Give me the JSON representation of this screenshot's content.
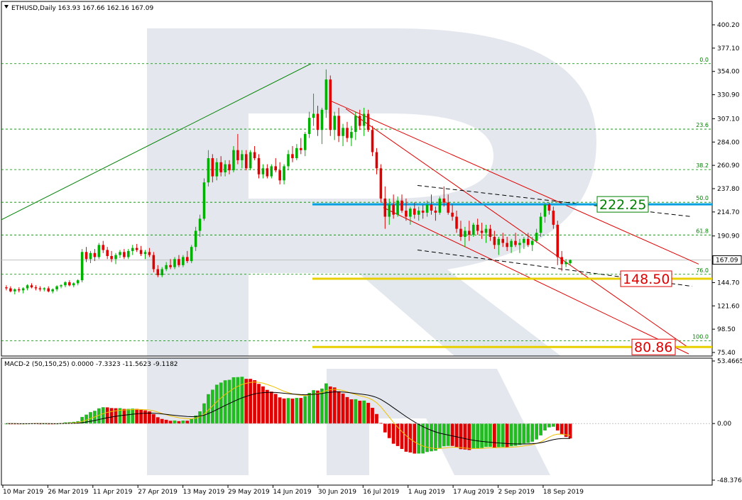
{
  "chart_data": [
    {
      "type": "candlestick",
      "header": "ETHUSD,Daily  163.93 167.66 162.16 167.09",
      "yticks": [
        "400.20",
        "377.10",
        "354.00",
        "330.90",
        "307.10",
        "284.00",
        "260.90",
        "237.80",
        "214.70",
        "190.90",
        "167.80",
        "144.70",
        "121.60",
        "98.50",
        "75.40"
      ],
      "ylim": [
        75.4,
        400.2
      ],
      "xticks": [
        "10 Mar 2019",
        "26 Mar 2019",
        "11 Apr 2019",
        "27 Apr 2019",
        "13 May 2019",
        "29 May 2019",
        "14 Jun 2019",
        "30 Jun 2019",
        "16 Jul 2019",
        "1 Aug 2019",
        "17 Aug 2019",
        "2 Sep 2019",
        "18 Sep 2019"
      ],
      "last_price": "167.09",
      "fibonacci_levels": [
        {
          "label": "0.0",
          "price": 361.7
        },
        {
          "label": "23.6",
          "price": 296.8
        },
        {
          "label": "38.2",
          "price": 256.7
        },
        {
          "label": "50.0",
          "price": 224.3
        },
        {
          "label": "61.8",
          "price": 191.9
        },
        {
          "label": "76.0",
          "price": 152.9
        },
        {
          "label": "100.0",
          "price": 86.9
        }
      ],
      "price_labels": [
        {
          "text": "222.25",
          "price": 222.25,
          "color": "#008000",
          "line_color": "#00a0e0"
        },
        {
          "text": "148.50",
          "price": 148.5,
          "color": "#e00000",
          "line_color": "#e8d000"
        },
        {
          "text": "80.86",
          "price": 80.86,
          "color": "#e00000",
          "line_color": "#e8d000"
        }
      ],
      "ohlc": [
        [
          140,
          142,
          137,
          139
        ],
        [
          139,
          141,
          135,
          136
        ],
        [
          136,
          139,
          133,
          138
        ],
        [
          138,
          140,
          135,
          137
        ],
        [
          137,
          140,
          134,
          139
        ],
        [
          139,
          143,
          137,
          142
        ],
        [
          142,
          144,
          139,
          140
        ],
        [
          140,
          142,
          137,
          139
        ],
        [
          139,
          141,
          136,
          138
        ],
        [
          138,
          140,
          136,
          139
        ],
        [
          139,
          141,
          135,
          136
        ],
        [
          136,
          139,
          134,
          138
        ],
        [
          138,
          142,
          136,
          141
        ],
        [
          141,
          143,
          139,
          142
        ],
        [
          142,
          146,
          140,
          145
        ],
        [
          145,
          147,
          141,
          142
        ],
        [
          142,
          145,
          140,
          144
        ],
        [
          144,
          148,
          142,
          147
        ],
        [
          147,
          178,
          145,
          175
        ],
        [
          175,
          180,
          165,
          168
        ],
        [
          168,
          176,
          164,
          174
        ],
        [
          174,
          178,
          166,
          170
        ],
        [
          170,
          184,
          168,
          182
        ],
        [
          182,
          186,
          174,
          177
        ],
        [
          177,
          180,
          168,
          171
        ],
        [
          171,
          176,
          165,
          168
        ],
        [
          168,
          174,
          163,
          172
        ],
        [
          172,
          177,
          169,
          175
        ],
        [
          175,
          178,
          168,
          170
        ],
        [
          170,
          178,
          168,
          176
        ],
        [
          176,
          182,
          172,
          179
        ],
        [
          179,
          183,
          175,
          177
        ],
        [
          177,
          181,
          171,
          173
        ],
        [
          173,
          177,
          168,
          175
        ],
        [
          175,
          179,
          170,
          172
        ],
        [
          172,
          175,
          155,
          158
        ],
        [
          158,
          162,
          150,
          152
        ],
        [
          152,
          160,
          150,
          158
        ],
        [
          158,
          165,
          156,
          162
        ],
        [
          162,
          168,
          158,
          160
        ],
        [
          160,
          170,
          158,
          168
        ],
        [
          168,
          172,
          160,
          162
        ],
        [
          162,
          172,
          160,
          170
        ],
        [
          170,
          176,
          164,
          166
        ],
        [
          166,
          182,
          164,
          180
        ],
        [
          180,
          200,
          176,
          196
        ],
        [
          196,
          212,
          190,
          208
        ],
        [
          208,
          248,
          206,
          244
        ],
        [
          244,
          276,
          240,
          268
        ],
        [
          268,
          272,
          244,
          250
        ],
        [
          250,
          268,
          246,
          264
        ],
        [
          264,
          270,
          250,
          254
        ],
        [
          254,
          266,
          250,
          262
        ],
        [
          262,
          266,
          252,
          256
        ],
        [
          256,
          280,
          254,
          276
        ],
        [
          276,
          292,
          262,
          266
        ],
        [
          266,
          276,
          258,
          272
        ],
        [
          272,
          276,
          256,
          258
        ],
        [
          258,
          276,
          256,
          274
        ],
        [
          274,
          280,
          266,
          268
        ],
        [
          268,
          272,
          248,
          252
        ],
        [
          252,
          262,
          248,
          258
        ],
        [
          258,
          262,
          248,
          250
        ],
        [
          250,
          262,
          248,
          260
        ],
        [
          260,
          268,
          254,
          256
        ],
        [
          256,
          264,
          242,
          246
        ],
        [
          246,
          262,
          242,
          260
        ],
        [
          260,
          276,
          256,
          272
        ],
        [
          272,
          280,
          264,
          268
        ],
        [
          268,
          282,
          266,
          278
        ],
        [
          278,
          288,
          272,
          276
        ],
        [
          276,
          294,
          270,
          292
        ],
        [
          292,
          314,
          288,
          308
        ],
        [
          308,
          332,
          300,
          312
        ],
        [
          312,
          320,
          290,
          296
        ],
        [
          296,
          318,
          282,
          316
        ],
        [
          316,
          356,
          308,
          346
        ],
        [
          346,
          350,
          290,
          296
        ],
        [
          296,
          314,
          286,
          310
        ],
        [
          310,
          318,
          284,
          290
        ],
        [
          290,
          302,
          280,
          298
        ],
        [
          298,
          304,
          284,
          288
        ],
        [
          288,
          300,
          280,
          294
        ],
        [
          294,
          314,
          286,
          310
        ],
        [
          310,
          316,
          296,
          300
        ],
        [
          300,
          318,
          290,
          312
        ],
        [
          312,
          316,
          294,
          296
        ],
        [
          296,
          300,
          270,
          274
        ],
        [
          274,
          278,
          252,
          258
        ],
        [
          258,
          262,
          224,
          228
        ],
        [
          228,
          240,
          198,
          210
        ],
        [
          210,
          228,
          202,
          222
        ],
        [
          222,
          232,
          208,
          212
        ],
        [
          212,
          230,
          210,
          226
        ],
        [
          226,
          232,
          214,
          216
        ],
        [
          216,
          228,
          206,
          210
        ],
        [
          210,
          220,
          202,
          218
        ],
        [
          218,
          224,
          208,
          212
        ],
        [
          212,
          220,
          206,
          216
        ],
        [
          216,
          222,
          208,
          214
        ],
        [
          214,
          226,
          210,
          222
        ],
        [
          222,
          232,
          212,
          216
        ],
        [
          216,
          220,
          206,
          214
        ],
        [
          214,
          230,
          212,
          228
        ],
        [
          228,
          240,
          220,
          224
        ],
        [
          224,
          232,
          212,
          214
        ],
        [
          214,
          222,
          206,
          210
        ],
        [
          210,
          216,
          194,
          198
        ],
        [
          198,
          206,
          186,
          190
        ],
        [
          190,
          200,
          180,
          196
        ],
        [
          196,
          206,
          186,
          192
        ],
        [
          192,
          204,
          190,
          202
        ],
        [
          202,
          208,
          192,
          196
        ],
        [
          196,
          204,
          188,
          194
        ],
        [
          194,
          202,
          184,
          198
        ],
        [
          198,
          202,
          186,
          190
        ],
        [
          190,
          196,
          178,
          182
        ],
        [
          182,
          190,
          172,
          188
        ],
        [
          188,
          194,
          180,
          184
        ],
        [
          184,
          190,
          176,
          180
        ],
        [
          180,
          188,
          174,
          186
        ],
        [
          186,
          194,
          180,
          182
        ],
        [
          182,
          188,
          174,
          184
        ],
        [
          184,
          190,
          178,
          188
        ],
        [
          188,
          194,
          180,
          182
        ],
        [
          182,
          190,
          176,
          186
        ],
        [
          186,
          198,
          184,
          194
        ],
        [
          194,
          214,
          190,
          210
        ],
        [
          210,
          224,
          204,
          222
        ],
        [
          222,
          224,
          212,
          216
        ],
        [
          216,
          220,
          198,
          202
        ],
        [
          202,
          206,
          162,
          170
        ],
        [
          170,
          176,
          156,
          163
        ],
        [
          163,
          168,
          160,
          165
        ],
        [
          163.93,
          167.66,
          162.16,
          167.09
        ]
      ]
    },
    {
      "type": "macd",
      "header": "MACD-2 (50,150,25) 0.0000 -7.3323 -11.5623 -9.1182",
      "yticks": [
        "53.4665",
        "0.00",
        "-48.3762"
      ],
      "ylim": [
        -48.3762,
        53.4665
      ],
      "histogram_start": 14.4,
      "histogram_end": -9.1182
    }
  ]
}
